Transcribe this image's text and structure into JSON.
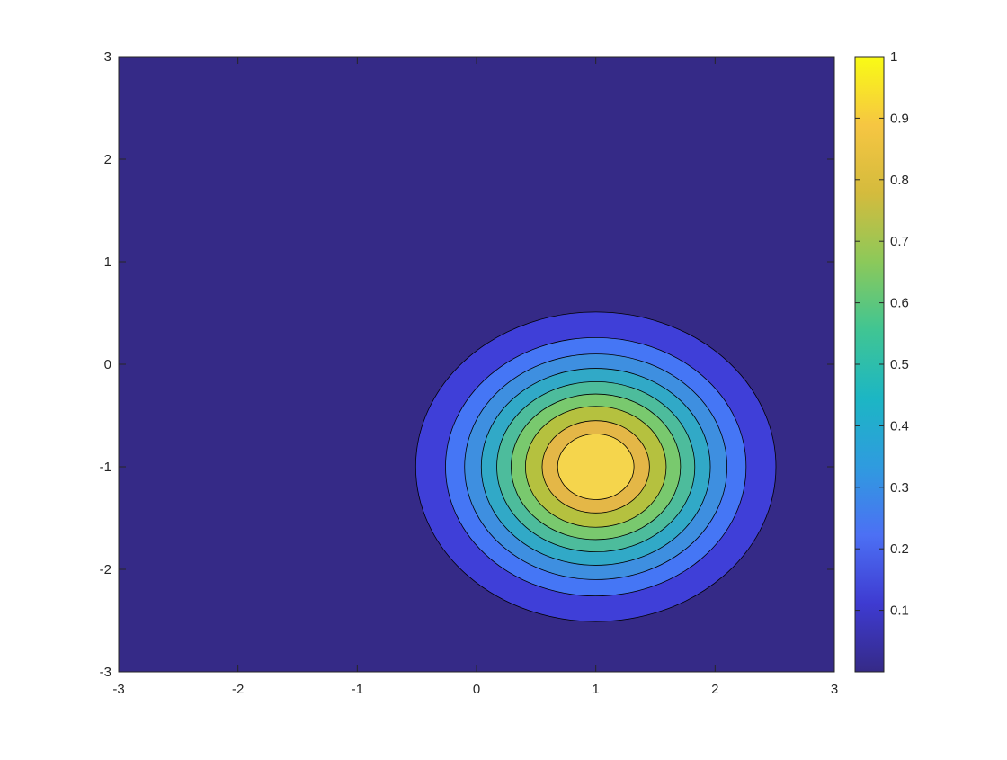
{
  "chart_data": {
    "type": "contourf",
    "title": "",
    "xlabel": "",
    "ylabel": "",
    "xlim": [
      -3,
      3
    ],
    "ylim": [
      -3,
      3
    ],
    "xticks": [
      "-3",
      "-2",
      "-1",
      "0",
      "1",
      "2",
      "3"
    ],
    "yticks": [
      "-3",
      "-2",
      "-1",
      "0",
      "1",
      "2",
      "3"
    ],
    "peak": {
      "x": 1,
      "y": -1,
      "z": 1
    },
    "levels": [
      0.1,
      0.2,
      0.3,
      0.4,
      0.5,
      0.6,
      0.7,
      0.8,
      0.9
    ],
    "level_radii_x": [
      1.51,
      1.26,
      1.1,
      0.96,
      0.83,
      0.71,
      0.59,
      0.45,
      0.32
    ],
    "level_radii_y": [
      1.51,
      1.26,
      1.1,
      0.96,
      0.83,
      0.71,
      0.59,
      0.45,
      0.32
    ],
    "band_colors": [
      "#352a87",
      "#3f3fd8",
      "#4576f5",
      "#3e8fe0",
      "#31a9c7",
      "#4dbc9c",
      "#79c96e",
      "#b5c13f",
      "#e4b747",
      "#f5d54c"
    ],
    "colorbar": {
      "min": 0.0,
      "max": 1.0,
      "ticks": [
        "0.1",
        "0.2",
        "0.3",
        "0.4",
        "0.5",
        "0.6",
        "0.7",
        "0.8",
        "0.9",
        "1"
      ],
      "gradient": [
        "#352a87",
        "#3e3bd1",
        "#4c70f4",
        "#2f9bdf",
        "#1cb6c4",
        "#40c593",
        "#8cc95a",
        "#d4bb3d",
        "#f6c642",
        "#f9fb15"
      ]
    },
    "grid": false
  }
}
